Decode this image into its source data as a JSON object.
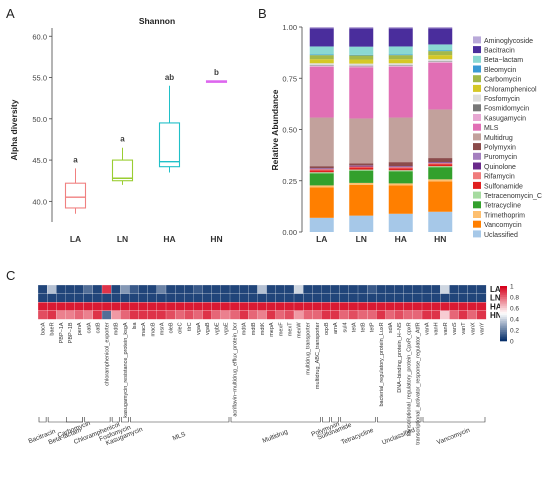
{
  "panel_labels": [
    "A",
    "B",
    "C"
  ],
  "colors": {
    "LA": "#f08080",
    "LN": "#9acd32",
    "HA": "#20c0c8",
    "HN": "#dd66ee",
    "sig_text": "#3d3d3d",
    "heat_low": "#08306b",
    "heat_mid": "#ffffff",
    "heat_high": "#d6001c"
  },
  "chart_data": [
    {
      "type": "box",
      "title": "Shannon",
      "ylabel": "Alpha diversity",
      "ylim": [
        37.5,
        61
      ],
      "yticks": [
        "40.0",
        "45.0",
        "50.0",
        "55.0",
        "60.0"
      ],
      "ytick_values": [
        40,
        45,
        50,
        55,
        60
      ],
      "categories": [
        "LA",
        "LN",
        "HA",
        "HN"
      ],
      "boxes": [
        {
          "group": "LA",
          "min": 38.5,
          "q1": 39.2,
          "median": 40.5,
          "q3": 42.2,
          "max": 44.0
        },
        {
          "group": "LN",
          "min": 42.0,
          "q1": 42.5,
          "median": 42.8,
          "q3": 45.0,
          "max": 46.5
        },
        {
          "group": "HA",
          "min": 43.5,
          "q1": 44.2,
          "median": 44.8,
          "q3": 49.5,
          "max": 54.0
        },
        {
          "group": "HN",
          "min": 54.5,
          "q1": 54.5,
          "median": 54.5,
          "q3": 54.6,
          "max": 54.6
        }
      ],
      "significance": [
        "a",
        "a",
        "ab",
        "b"
      ]
    },
    {
      "type": "stacked_bar",
      "ylabel": "Relative Abundance",
      "ylim": [
        0,
        1
      ],
      "yticks": [
        "0.00",
        "0.25",
        "0.50",
        "0.75",
        "1.00"
      ],
      "ytick_values": [
        0,
        0.25,
        0.5,
        0.75,
        1.0
      ],
      "categories": [
        "LA",
        "LN",
        "HA",
        "HN"
      ],
      "legend": [
        "Aminoglycoside",
        "Bacitracin",
        "Beta−lactam",
        "Bleomycin",
        "Carbomycin",
        "Chloramphenicol",
        "Fosfomycin",
        "Fosmidomycin",
        "Kasugamycin",
        "MLS",
        "Multidrug",
        "Polymyxin",
        "Puromycin",
        "Quinolone",
        "Rifamycin",
        "Sulfonamide",
        "Tetracenomycin_C",
        "Tetracycline",
        "Trimethoprim",
        "Vancomycin",
        "Uclassified"
      ],
      "legend_colors": [
        "#b9a9d9",
        "#4a2d9c",
        "#8ad8d2",
        "#3a9ad4",
        "#a3b84a",
        "#d5c826",
        "#dddddd",
        "#777777",
        "#e7a7d2",
        "#e16fb5",
        "#c2a19c",
        "#8b4b4b",
        "#a47fbf",
        "#6a2a8a",
        "#f07c7c",
        "#e02020",
        "#a6dba0",
        "#33a02c",
        "#fdbf6f",
        "#ff7f00",
        "#a6c8e8"
      ],
      "stack_order_bottom_to_top": [
        "Uclassified",
        "Vancomycin",
        "Trimethoprim",
        "Tetracycline",
        "Tetracenomycin_C",
        "Sulfonamide",
        "Rifamycin",
        "Quinolone",
        "Puromycin",
        "Polymyxin",
        "Multidrug",
        "MLS",
        "Kasugamycin",
        "Fosmidomycin",
        "Fosfomycin",
        "Chloramphenicol",
        "Carbomycin",
        "Bleomycin",
        "Beta−lactam",
        "Bacitracin",
        "Aminoglycoside"
      ],
      "series": [
        {
          "name": "Uclassified",
          "values": [
            0.07,
            0.08,
            0.09,
            0.1
          ]
        },
        {
          "name": "Vancomycin",
          "values": [
            0.15,
            0.15,
            0.14,
            0.15
          ]
        },
        {
          "name": "Trimethoprim",
          "values": [
            0.01,
            0.01,
            0.01,
            0.01
          ]
        },
        {
          "name": "Tetracycline",
          "values": [
            0.06,
            0.06,
            0.06,
            0.06
          ]
        },
        {
          "name": "Tetracenomycin_C",
          "values": [
            0.005,
            0.005,
            0.005,
            0.005
          ]
        },
        {
          "name": "Sulfonamide",
          "values": [
            0.01,
            0.01,
            0.01,
            0.01
          ]
        },
        {
          "name": "Rifamycin",
          "values": [
            0.005,
            0.005,
            0.005,
            0.005
          ]
        },
        {
          "name": "Quinolone",
          "values": [
            0.003,
            0.003,
            0.003,
            0.003
          ]
        },
        {
          "name": "Puromycin",
          "values": [
            0.002,
            0.002,
            0.002,
            0.002
          ]
        },
        {
          "name": "Polymyxin",
          "values": [
            0.01,
            0.01,
            0.02,
            0.02
          ]
        },
        {
          "name": "Multidrug",
          "values": [
            0.24,
            0.22,
            0.22,
            0.24
          ]
        },
        {
          "name": "MLS",
          "values": [
            0.25,
            0.25,
            0.25,
            0.23
          ]
        },
        {
          "name": "Kasugamycin",
          "values": [
            0.005,
            0.005,
            0.005,
            0.005
          ]
        },
        {
          "name": "Fosmidomycin",
          "values": [
            0.003,
            0.003,
            0.003,
            0.003
          ]
        },
        {
          "name": "Fosfomycin",
          "values": [
            0.01,
            0.01,
            0.01,
            0.01
          ]
        },
        {
          "name": "Chloramphenicol",
          "values": [
            0.02,
            0.02,
            0.02,
            0.02
          ]
        },
        {
          "name": "Carbomycin",
          "values": [
            0.02,
            0.02,
            0.02,
            0.02
          ]
        },
        {
          "name": "Bleomycin",
          "values": [
            0.003,
            0.003,
            0.003,
            0.003
          ]
        },
        {
          "name": "Beta−lactam",
          "values": [
            0.04,
            0.04,
            0.04,
            0.03
          ]
        },
        {
          "name": "Bacitracin",
          "values": [
            0.09,
            0.09,
            0.09,
            0.08
          ]
        },
        {
          "name": "Aminoglycoside",
          "values": [
            0.006,
            0.006,
            0.006,
            0.006
          ]
        }
      ]
    },
    {
      "type": "heatmap",
      "rows": [
        "LA",
        "LN",
        "HA",
        "HN"
      ],
      "colorbar_ticks": [
        "1",
        "0.8",
        "0.6",
        "0.4",
        "0.2",
        "0"
      ],
      "colorbar_tick_values": [
        1,
        0.8,
        0.6,
        0.4,
        0.2,
        0
      ],
      "columns": [
        "bacA",
        "baeR",
        "PBP−1A",
        "PBP−1B",
        "penA",
        "catA",
        "catB",
        "chloramphenicol_exporter",
        "mdtB",
        "kasugamycin_resistance_protein_ksgA",
        "lsa",
        "macA",
        "macB",
        "msrA",
        "oleB",
        "oleC",
        "tlrC",
        "vgaA",
        "vgaB",
        "vgbE",
        "vgaE",
        "acriflavin−multidrug_efflux_protein_bcr",
        "mdtA",
        "mdtB",
        "mdtK",
        "mepA",
        "mexF",
        "mexT",
        "mexW",
        "multidrug_transporter",
        "multidrug_ABC_transporter",
        "oqxB",
        "arnA",
        "sul4",
        "tetA",
        "tetB",
        "tetP",
        "bacterial_regulatory_protein_LuxR",
        "sdiA",
        "DNA−binding_protein_H−NS",
        "transcriptional_regulatory_protein_CpxR_cpxR",
        "transcriptional_activator_response_regulator_AtfR",
        "vanA",
        "vanH",
        "vanR",
        "vanS",
        "vanT",
        "vanX",
        "vanY"
      ],
      "values": [
        [
          0.05,
          0.35,
          0.05,
          0.05,
          0.05,
          0.15,
          0.05,
          0.9,
          0.05,
          0.25,
          0.1,
          0.05,
          0.05,
          0.2,
          0.05,
          0.05,
          0.05,
          0.1,
          0.05,
          0.05,
          0.05,
          0.05,
          0.05,
          0.05,
          0.35,
          0.05,
          0.05,
          0.05,
          0.4,
          0.05,
          0.05,
          0.05,
          0.05,
          0.05,
          0.05,
          0.05,
          0.1,
          0.05,
          0.05,
          0.05,
          0.05,
          0.05,
          0.05,
          0.05,
          0.4,
          0.05,
          0.05,
          0.05,
          0.05
        ],
        [
          0.05,
          0.05,
          0.05,
          0.05,
          0.05,
          0.05,
          0.05,
          0.05,
          0.05,
          0.05,
          0.05,
          0.05,
          0.05,
          0.05,
          0.05,
          0.05,
          0.05,
          0.05,
          0.05,
          0.05,
          0.05,
          0.05,
          0.05,
          0.05,
          0.05,
          0.05,
          0.05,
          0.05,
          0.05,
          0.05,
          0.05,
          0.05,
          0.05,
          0.05,
          0.05,
          0.05,
          0.05,
          0.05,
          0.05,
          0.05,
          0.05,
          0.05,
          0.05,
          0.05,
          0.05,
          0.05,
          0.05,
          0.05,
          0.05
        ],
        [
          0.95,
          0.95,
          0.95,
          0.95,
          0.95,
          0.95,
          0.95,
          0.95,
          0.95,
          0.95,
          0.95,
          0.95,
          0.95,
          0.95,
          0.95,
          0.95,
          0.95,
          0.95,
          0.95,
          0.95,
          0.95,
          0.95,
          0.95,
          0.95,
          0.95,
          0.95,
          0.95,
          0.95,
          0.95,
          0.95,
          0.95,
          0.95,
          0.95,
          0.95,
          0.95,
          0.95,
          0.95,
          0.95,
          0.95,
          0.95,
          0.95,
          0.95,
          0.95,
          0.95,
          0.95,
          0.95,
          0.95,
          0.95,
          0.95
        ],
        [
          0.85,
          0.9,
          0.75,
          0.75,
          0.8,
          0.75,
          0.9,
          0.15,
          0.7,
          0.8,
          0.9,
          0.9,
          0.9,
          0.9,
          0.85,
          0.8,
          0.85,
          0.8,
          0.9,
          0.8,
          0.75,
          0.8,
          0.9,
          0.8,
          0.75,
          0.9,
          0.8,
          0.85,
          0.7,
          0.8,
          0.8,
          0.9,
          0.9,
          0.8,
          0.85,
          0.8,
          0.8,
          0.9,
          0.8,
          0.85,
          0.8,
          0.8,
          0.9,
          0.9,
          0.6,
          0.8,
          0.9,
          0.8,
          0.9
        ]
      ],
      "groups": [
        {
          "label": "Bacitracin",
          "from": 0,
          "to": 0
        },
        {
          "label": "Beta-lactam",
          "from": 1,
          "to": 4
        },
        {
          "label": "Carbomycin",
          "from": 3,
          "to": 4
        },
        {
          "label": "Chloramphenicol",
          "from": 5,
          "to": 7
        },
        {
          "label": "Fosfomycin",
          "from": 8,
          "to": 8
        },
        {
          "label": "Kasugamycin",
          "from": 9,
          "to": 9
        },
        {
          "label": "MLS",
          "from": 10,
          "to": 20
        },
        {
          "label": "Multidrug",
          "from": 21,
          "to": 30
        },
        {
          "label": "Polymyxin",
          "from": 31,
          "to": 31
        },
        {
          "label": "Sulfonamide",
          "from": 32,
          "to": 32
        },
        {
          "label": "Tetracycline",
          "from": 33,
          "to": 36
        },
        {
          "label": "Unclassified",
          "from": 37,
          "to": 41
        },
        {
          "label": "Vancomycin",
          "from": 42,
          "to": 48
        }
      ]
    }
  ]
}
